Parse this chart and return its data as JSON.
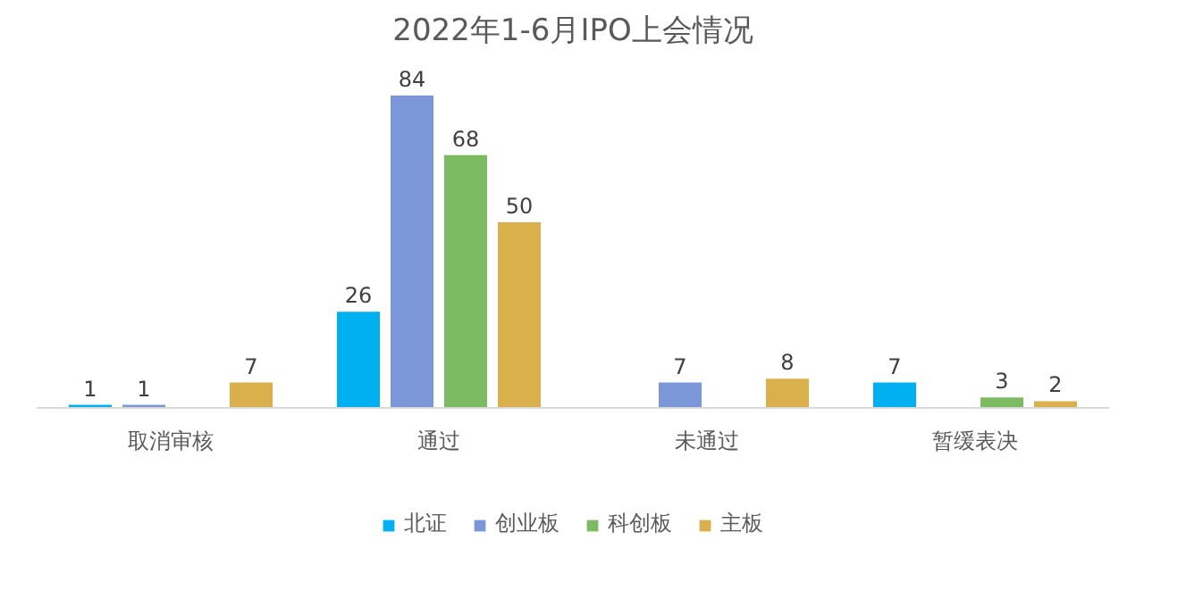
{
  "chart_data": {
    "type": "bar",
    "title": "2022年1-6月IPO上会情况",
    "categories": [
      "取消审核",
      "通过",
      "未通过",
      "暂缓表决"
    ],
    "series": [
      {
        "name": "北证",
        "color": "#00b0f0",
        "values": [
          1,
          26,
          null,
          7
        ]
      },
      {
        "name": "创业板",
        "color": "#7b97d9",
        "values": [
          1,
          84,
          7,
          null
        ]
      },
      {
        "name": "科创板",
        "color": "#7cbb62",
        "values": [
          null,
          68,
          null,
          3
        ]
      },
      {
        "name": "主板",
        "color": "#d9b04b",
        "values": [
          7,
          50,
          8,
          2
        ]
      }
    ],
    "data_labels": true,
    "grid": false,
    "legend": "bottom"
  }
}
